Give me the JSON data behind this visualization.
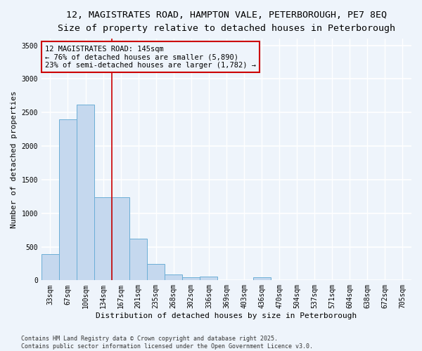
{
  "title_line1": "12, MAGISTRATES ROAD, HAMPTON VALE, PETERBOROUGH, PE7 8EQ",
  "title_line2": "Size of property relative to detached houses in Peterborough",
  "xlabel": "Distribution of detached houses by size in Peterborough",
  "ylabel": "Number of detached properties",
  "categories": [
    "33sqm",
    "67sqm",
    "100sqm",
    "134sqm",
    "167sqm",
    "201sqm",
    "235sqm",
    "268sqm",
    "302sqm",
    "336sqm",
    "369sqm",
    "403sqm",
    "436sqm",
    "470sqm",
    "504sqm",
    "537sqm",
    "571sqm",
    "604sqm",
    "638sqm",
    "672sqm",
    "705sqm"
  ],
  "values": [
    390,
    2400,
    2620,
    1240,
    1240,
    620,
    240,
    90,
    50,
    60,
    0,
    0,
    50,
    0,
    0,
    0,
    0,
    0,
    0,
    0,
    0
  ],
  "bar_color": "#c5d8ee",
  "bar_edge_color": "#6baed6",
  "vline_x": 3.5,
  "vline_color": "#cc0000",
  "annotation_text": "12 MAGISTRATES ROAD: 145sqm\n← 76% of detached houses are smaller (5,890)\n23% of semi-detached houses are larger (1,782) →",
  "annotation_box_color": "#cc0000",
  "ylim": [
    0,
    3600
  ],
  "yticks": [
    0,
    500,
    1000,
    1500,
    2000,
    2500,
    3000,
    3500
  ],
  "footer_line1": "Contains HM Land Registry data © Crown copyright and database right 2025.",
  "footer_line2": "Contains public sector information licensed under the Open Government Licence v3.0.",
  "bg_color": "#eef4fb",
  "grid_color": "#ffffff",
  "title_fontsize": 9.5,
  "subtitle_fontsize": 8.5,
  "axis_label_fontsize": 8,
  "tick_fontsize": 7,
  "annotation_fontsize": 7.5,
  "footer_fontsize": 6
}
